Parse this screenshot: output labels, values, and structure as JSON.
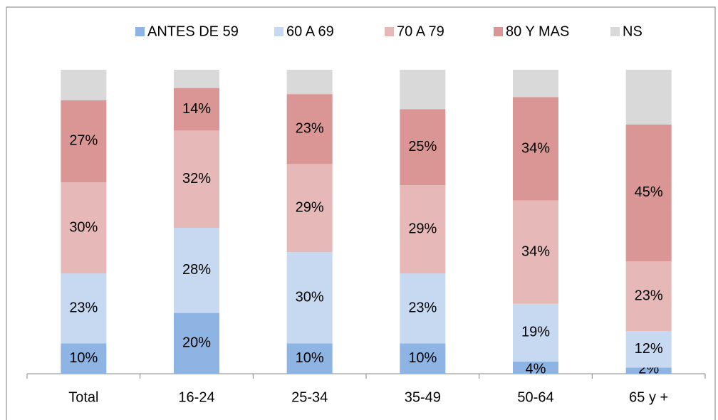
{
  "chart_data": {
    "type": "stacked_bar",
    "categories": [
      "Total",
      "16-24",
      "25-34",
      "35-49",
      "50-64",
      "65 y +"
    ],
    "series": [
      {
        "name": "ANTES DE 59",
        "color": "#8eb4e3",
        "values": [
          10,
          20,
          10,
          10,
          4,
          2
        ],
        "value_labels": [
          "10%",
          "20%",
          "10%",
          "10%",
          "4%",
          "2%"
        ]
      },
      {
        "name": "60 A 69",
        "color": "#c6d9f1",
        "values": [
          23,
          28,
          30,
          23,
          19,
          12
        ],
        "value_labels": [
          "23%",
          "28%",
          "30%",
          "23%",
          "19%",
          "12%"
        ]
      },
      {
        "name": "70 A 79",
        "color": "#e6b9b8",
        "values": [
          30,
          32,
          29,
          29,
          34,
          23
        ],
        "value_labels": [
          "30%",
          "32%",
          "29%",
          "29%",
          "34%",
          "23%"
        ]
      },
      {
        "name": "80 Y MAS",
        "color": "#d99694",
        "values": [
          27,
          14,
          23,
          25,
          34,
          45
        ],
        "value_labels": [
          "27%",
          "14%",
          "23%",
          "25%",
          "34%",
          "45%"
        ]
      },
      {
        "name": "NS",
        "color": "#d9d9d9",
        "values": [
          10,
          6,
          8,
          13,
          9,
          18
        ]
      }
    ],
    "legend": "top"
  }
}
